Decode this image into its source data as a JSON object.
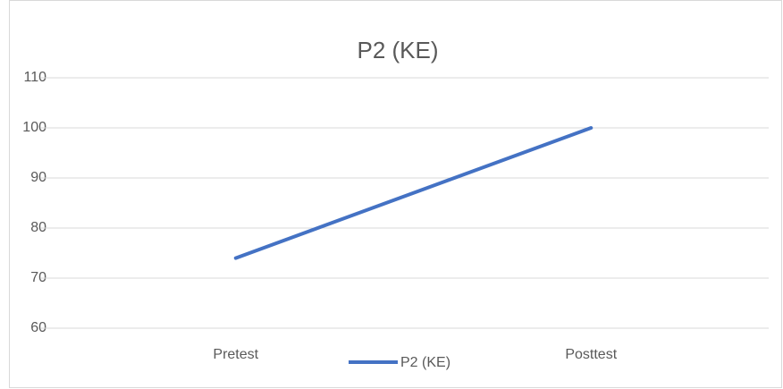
{
  "chart_data": {
    "type": "line",
    "title": "P2 (KE)",
    "categories": [
      "Pretest",
      "Posttest"
    ],
    "series": [
      {
        "name": "P2 (KE)",
        "color": "#4472c4",
        "values": [
          74,
          100
        ]
      }
    ],
    "ylim": [
      60,
      110
    ],
    "yticks": [
      60,
      70,
      80,
      90,
      100,
      110
    ],
    "grid": true,
    "legend": "bottom"
  }
}
